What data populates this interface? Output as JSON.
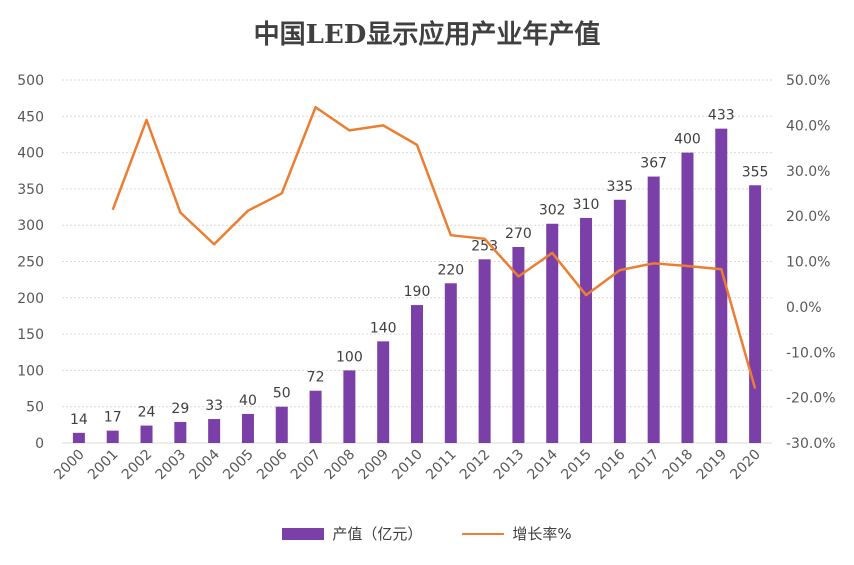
{
  "chart_data": {
    "type": "bar",
    "title": "中国LED显示应用产业年产值",
    "categories": [
      "2000",
      "2001",
      "2002",
      "2003",
      "2004",
      "2005",
      "2006",
      "2007",
      "2008",
      "2009",
      "2010",
      "2011",
      "2012",
      "2013",
      "2014",
      "2015",
      "2016",
      "2017",
      "2018",
      "2019",
      "2020"
    ],
    "series": [
      {
        "name": "产值（亿元）",
        "type": "bar",
        "axis": "left",
        "color": "#7B3FA8",
        "values": [
          14,
          17,
          24,
          29,
          33,
          40,
          50,
          72,
          100,
          140,
          190,
          220,
          253,
          270,
          302,
          310,
          335,
          367,
          400,
          433,
          355
        ]
      },
      {
        "name": "增长率%",
        "type": "line",
        "axis": "right",
        "color": "#ED7D31",
        "values": [
          null,
          21.4,
          41.2,
          20.8,
          13.8,
          21.2,
          25.0,
          44.0,
          38.9,
          40.0,
          35.7,
          15.8,
          15.0,
          6.7,
          11.9,
          2.6,
          8.1,
          9.6,
          9.0,
          8.3,
          -18.0
        ]
      }
    ],
    "y_left": {
      "ylim": [
        0,
        500
      ],
      "ticks": [
        "0",
        "50",
        "100",
        "150",
        "200",
        "250",
        "300",
        "350",
        "400",
        "450",
        "500"
      ]
    },
    "y_right": {
      "ylim": [
        -30,
        50
      ],
      "ticks": [
        "-30.0%",
        "-20.0%",
        "-10.0%",
        "0.0%",
        "10.0%",
        "20.0%",
        "30.0%",
        "40.0%",
        "50.0%"
      ]
    },
    "grid": true,
    "legend_position": "bottom"
  }
}
